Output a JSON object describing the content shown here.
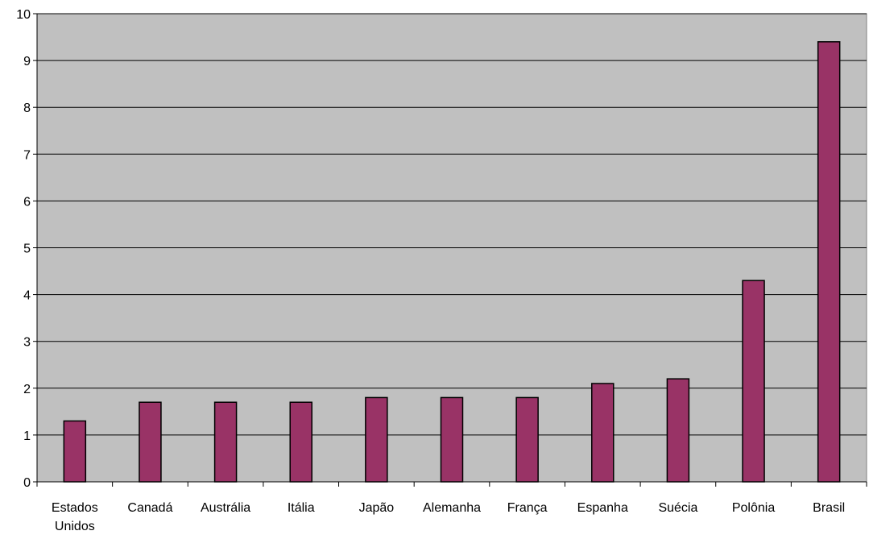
{
  "chart_data": {
    "type": "bar",
    "categories": [
      "Estados Unidos",
      "Canadá",
      "Austrália",
      "Itália",
      "Japão",
      "Alemanha",
      "França",
      "Espanha",
      "Suécia",
      "Polônia",
      "Brasil"
    ],
    "category_lines": [
      [
        "Estados",
        "Unidos"
      ],
      [
        "Canadá"
      ],
      [
        "Austrália"
      ],
      [
        "Itália"
      ],
      [
        "Japão"
      ],
      [
        "Alemanha"
      ],
      [
        "França"
      ],
      [
        "Espanha"
      ],
      [
        "Suécia"
      ],
      [
        "Polônia"
      ],
      [
        "Brasil"
      ]
    ],
    "values": [
      1.3,
      1.7,
      1.7,
      1.7,
      1.8,
      1.8,
      1.8,
      2.1,
      2.2,
      4.3,
      9.4
    ],
    "yticks": [
      "0",
      "1",
      "2",
      "3",
      "4",
      "5",
      "6",
      "7",
      "8",
      "9",
      "10"
    ],
    "ylim": [
      0,
      10
    ],
    "title": "",
    "xlabel": "",
    "ylabel": "",
    "grid": true,
    "legend": "none",
    "colors": {
      "bar": "#993366",
      "plot_background": "#c0c0c0",
      "gridline": "#000000"
    }
  }
}
